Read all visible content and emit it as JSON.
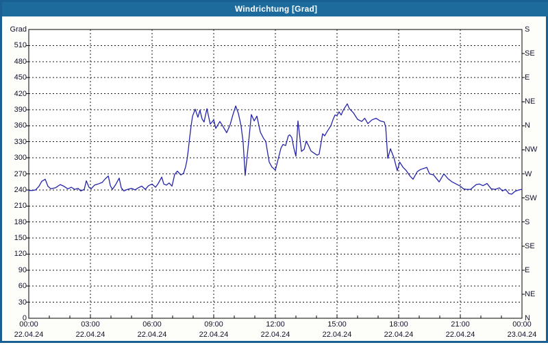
{
  "window": {
    "title": "Windrichtung [Grad]"
  },
  "chart_data": {
    "type": "line",
    "title": "Windrichtung [Grad]",
    "y_axis_left": {
      "label": "Grad",
      "min": 0,
      "max": 540,
      "tick_step": 30,
      "tick_labels": [
        0,
        30,
        60,
        90,
        120,
        150,
        180,
        210,
        240,
        270,
        300,
        330,
        360,
        390,
        420,
        450,
        480,
        510
      ]
    },
    "y_axis_right": {
      "unit": "compass",
      "ticks": [
        {
          "deg": 0,
          "label": "N"
        },
        {
          "deg": 45,
          "label": "NE"
        },
        {
          "deg": 90,
          "label": "E"
        },
        {
          "deg": 135,
          "label": "SE"
        },
        {
          "deg": 180,
          "label": "S"
        },
        {
          "deg": 225,
          "label": "SW"
        },
        {
          "deg": 270,
          "label": "W"
        },
        {
          "deg": 315,
          "label": "NW"
        },
        {
          "deg": 360,
          "label": "N"
        },
        {
          "deg": 405,
          "label": "NE"
        },
        {
          "deg": 450,
          "label": "E"
        },
        {
          "deg": 495,
          "label": "SE"
        },
        {
          "deg": 540,
          "label": "S"
        }
      ]
    },
    "x_axis": {
      "unit": "time",
      "hours_span": 24,
      "minor_tick_hours": 1,
      "ticks": [
        {
          "hour": 0,
          "time": "00:00",
          "date": "22.04.24"
        },
        {
          "hour": 3,
          "time": "03:00",
          "date": "22.04.24"
        },
        {
          "hour": 6,
          "time": "06:00",
          "date": "22.04.24"
        },
        {
          "hour": 9,
          "time": "09:00",
          "date": "22.04.24"
        },
        {
          "hour": 12,
          "time": "12:00",
          "date": "22.04.24"
        },
        {
          "hour": 15,
          "time": "15:00",
          "date": "22.04.24"
        },
        {
          "hour": 18,
          "time": "18:00",
          "date": "22.04.24"
        },
        {
          "hour": 21,
          "time": "21:00",
          "date": "22.04.24"
        },
        {
          "hour": 24,
          "time": "00:00",
          "date": "23.04.24"
        }
      ]
    },
    "grid": {
      "horizontal_step_deg": 30,
      "vertical_step_hours": 3,
      "style": "dashed"
    },
    "colors": {
      "titlebar_bg": "#1d6b9d",
      "frame_border": "#1a5f91",
      "plot_border": "#000000",
      "grid": "#151515",
      "line": "#2323aa",
      "text": "#10102a"
    },
    "series": [
      {
        "name": "Windrichtung",
        "color": "#2323aa",
        "points_hour_deg": [
          [
            0.0,
            239
          ],
          [
            0.17,
            239
          ],
          [
            0.33,
            240
          ],
          [
            0.5,
            247
          ],
          [
            0.63,
            256
          ],
          [
            0.8,
            260
          ],
          [
            0.93,
            247
          ],
          [
            1.07,
            242
          ],
          [
            1.3,
            244
          ],
          [
            1.53,
            250
          ],
          [
            1.7,
            247
          ],
          [
            1.9,
            242
          ],
          [
            2.07,
            245
          ],
          [
            2.23,
            241
          ],
          [
            2.4,
            243
          ],
          [
            2.53,
            238
          ],
          [
            2.7,
            241
          ],
          [
            2.8,
            257
          ],
          [
            2.93,
            245
          ],
          [
            3.03,
            242
          ],
          [
            3.2,
            249
          ],
          [
            3.37,
            251
          ],
          [
            3.57,
            254
          ],
          [
            3.73,
            261
          ],
          [
            3.87,
            266
          ],
          [
            3.97,
            248
          ],
          [
            4.07,
            241
          ],
          [
            4.23,
            250
          ],
          [
            4.4,
            262
          ],
          [
            4.5,
            244
          ],
          [
            4.63,
            238
          ],
          [
            4.8,
            241
          ],
          [
            5.0,
            243
          ],
          [
            5.17,
            240
          ],
          [
            5.33,
            244
          ],
          [
            5.5,
            247
          ],
          [
            5.67,
            241
          ],
          [
            5.83,
            248
          ],
          [
            6.0,
            251
          ],
          [
            6.17,
            245
          ],
          [
            6.3,
            252
          ],
          [
            6.47,
            264
          ],
          [
            6.57,
            251
          ],
          [
            6.7,
            249
          ],
          [
            6.83,
            253
          ],
          [
            6.97,
            247
          ],
          [
            7.1,
            269
          ],
          [
            7.23,
            275
          ],
          [
            7.4,
            268
          ],
          [
            7.53,
            271
          ],
          [
            7.63,
            283
          ],
          [
            7.7,
            296
          ],
          [
            7.77,
            317
          ],
          [
            7.83,
            338
          ],
          [
            7.9,
            360
          ],
          [
            7.97,
            378
          ],
          [
            8.03,
            384
          ],
          [
            8.1,
            391
          ],
          [
            8.23,
            376
          ],
          [
            8.33,
            389
          ],
          [
            8.43,
            373
          ],
          [
            8.53,
            367
          ],
          [
            8.67,
            392
          ],
          [
            8.83,
            363
          ],
          [
            9.0,
            371
          ],
          [
            9.1,
            355
          ],
          [
            9.3,
            368
          ],
          [
            9.43,
            360
          ],
          [
            9.63,
            347
          ],
          [
            9.8,
            362
          ],
          [
            9.93,
            380
          ],
          [
            10.07,
            397
          ],
          [
            10.2,
            383
          ],
          [
            10.33,
            360
          ],
          [
            10.43,
            330
          ],
          [
            10.53,
            267
          ],
          [
            10.7,
            330
          ],
          [
            10.83,
            381
          ],
          [
            10.97,
            369
          ],
          [
            11.1,
            378
          ],
          [
            11.27,
            348
          ],
          [
            11.43,
            336
          ],
          [
            11.53,
            331
          ],
          [
            11.7,
            292
          ],
          [
            11.83,
            283
          ],
          [
            12.0,
            277
          ],
          [
            12.27,
            318
          ],
          [
            12.37,
            325
          ],
          [
            12.5,
            323
          ],
          [
            12.63,
            341
          ],
          [
            12.7,
            343
          ],
          [
            12.8,
            338
          ],
          [
            12.9,
            318
          ],
          [
            13.0,
            303
          ],
          [
            13.1,
            369
          ],
          [
            13.27,
            312
          ],
          [
            13.4,
            316
          ],
          [
            13.5,
            331
          ],
          [
            13.6,
            324
          ],
          [
            13.73,
            313
          ],
          [
            13.87,
            309
          ],
          [
            14.03,
            305
          ],
          [
            14.13,
            307
          ],
          [
            14.3,
            345
          ],
          [
            14.4,
            341
          ],
          [
            14.5,
            348
          ],
          [
            14.7,
            360
          ],
          [
            14.8,
            371
          ],
          [
            14.9,
            380
          ],
          [
            15.0,
            379
          ],
          [
            15.1,
            386
          ],
          [
            15.2,
            380
          ],
          [
            15.3,
            389
          ],
          [
            15.5,
            401
          ],
          [
            15.6,
            392
          ],
          [
            15.8,
            384
          ],
          [
            16.0,
            372
          ],
          [
            16.2,
            368
          ],
          [
            16.35,
            374
          ],
          [
            16.5,
            364
          ],
          [
            16.7,
            371
          ],
          [
            16.9,
            374
          ],
          [
            17.1,
            369
          ],
          [
            17.3,
            367
          ],
          [
            17.37,
            357
          ],
          [
            17.47,
            299
          ],
          [
            17.6,
            317
          ],
          [
            17.77,
            300
          ],
          [
            17.93,
            276
          ],
          [
            18.05,
            292
          ],
          [
            18.2,
            283
          ],
          [
            18.37,
            276
          ],
          [
            18.55,
            266
          ],
          [
            18.7,
            260
          ],
          [
            18.9,
            274
          ],
          [
            19.05,
            278
          ],
          [
            19.2,
            280
          ],
          [
            19.37,
            282
          ],
          [
            19.5,
            270
          ],
          [
            19.7,
            268
          ],
          [
            19.97,
            255
          ],
          [
            20.2,
            270
          ],
          [
            20.4,
            261
          ],
          [
            20.6,
            255
          ],
          [
            20.8,
            251
          ],
          [
            21.0,
            247
          ],
          [
            21.15,
            242
          ],
          [
            21.3,
            241
          ],
          [
            21.5,
            241
          ],
          [
            21.77,
            250
          ],
          [
            21.93,
            251
          ],
          [
            22.1,
            248
          ],
          [
            22.3,
            252
          ],
          [
            22.5,
            242
          ],
          [
            22.7,
            241
          ],
          [
            22.9,
            244
          ],
          [
            23.05,
            238
          ],
          [
            23.2,
            241
          ],
          [
            23.37,
            233
          ],
          [
            23.5,
            232
          ],
          [
            23.65,
            237
          ],
          [
            23.85,
            240
          ],
          [
            24.0,
            241
          ]
        ]
      }
    ]
  }
}
